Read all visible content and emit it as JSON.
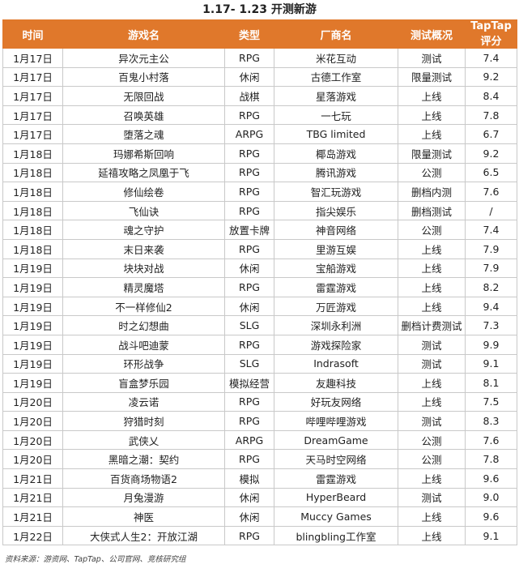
{
  "title": "1.17- 1.23 开测新游",
  "headers": [
    "时间",
    "游戏名",
    "类型",
    "厂商名",
    "测试概况",
    "TapTap评分"
  ],
  "rows": [
    [
      "1月17日",
      "异次元主公",
      "RPG",
      "米花互动",
      "测试",
      "7.4"
    ],
    [
      "1月17日",
      "百鬼小村落",
      "休闲",
      "古德工作室",
      "限量测试",
      "9.2"
    ],
    [
      "1月17日",
      "无限回战",
      "战棋",
      "星落游戏",
      "上线",
      "8.4"
    ],
    [
      "1月17日",
      "召唤英雄",
      "RPG",
      "一七玩",
      "上线",
      "7.8"
    ],
    [
      "1月17日",
      "堕落之魂",
      "ARPG",
      "TBG limited",
      "上线",
      "6.7"
    ],
    [
      "1月18日",
      "玛娜希斯回响",
      "RPG",
      "椰岛游戏",
      "限量测试",
      "9.2"
    ],
    [
      "1月18日",
      "延禧攻略之凤凰于飞",
      "RPG",
      "腾讯游戏",
      "公测",
      "6.5"
    ],
    [
      "1月18日",
      "修仙绘卷",
      "RPG",
      "智汇玩游戏",
      "删档内测",
      "7.6"
    ],
    [
      "1月18日",
      "飞仙诀",
      "RPG",
      "指尖娱乐",
      "删档测试",
      "/"
    ],
    [
      "1月18日",
      "魂之守护",
      "放置卡牌",
      "神音网络",
      "公测",
      "7.4"
    ],
    [
      "1月18日",
      "末日来袭",
      "RPG",
      "里游互娱",
      "上线",
      "7.9"
    ],
    [
      "1月19日",
      "块块对战",
      "休闲",
      "宝船游戏",
      "上线",
      "7.9"
    ],
    [
      "1月19日",
      "精灵魔塔",
      "RPG",
      "雷霆游戏",
      "上线",
      "8.2"
    ],
    [
      "1月19日",
      "不一样修仙2",
      "休闲",
      "万匠游戏",
      "上线",
      "9.4"
    ],
    [
      "1月19日",
      "时之幻想曲",
      "SLG",
      "深圳永利洲",
      "删档计费测试",
      "7.3"
    ],
    [
      "1月19日",
      "战斗吧迪蒙",
      "RPG",
      "游戏探险家",
      "测试",
      "9.9"
    ],
    [
      "1月19日",
      "环形战争",
      "SLG",
      "Indrasoft",
      "测试",
      "9.1"
    ],
    [
      "1月19日",
      "盲盒梦乐园",
      "模拟经营",
      "友趣科技",
      "上线",
      "8.1"
    ],
    [
      "1月20日",
      "凌云诺",
      "RPG",
      "好玩友网络",
      "上线",
      "7.5"
    ],
    [
      "1月20日",
      "狩猎时刻",
      "RPG",
      "哔哩哔哩游戏",
      "测试",
      "8.3"
    ],
    [
      "1月20日",
      "武侠乂",
      "ARPG",
      "DreamGame",
      "公测",
      "7.6"
    ],
    [
      "1月20日",
      "黑暗之潮：契约",
      "RPG",
      "天马时空网络",
      "公测",
      "7.8"
    ],
    [
      "1月21日",
      "百货商场物语2",
      "模拟",
      "雷霆游戏",
      "上线",
      "9.6"
    ],
    [
      "1月21日",
      "月兔漫游",
      "休闲",
      "HyperBeard",
      "测试",
      "9.0"
    ],
    [
      "1月21日",
      "神医",
      "休闲",
      "Muccy Games",
      "上线",
      "9.6"
    ],
    [
      "1月22日",
      "大侠式人生2：开放江湖",
      "RPG",
      "blingbling工作室",
      "上线",
      "9.1"
    ]
  ],
  "source": "资料来源：游资网、TapTap、公司官网、竞核研究组",
  "colors": {
    "header_bg": "#e0782b",
    "header_text": "#ffffff",
    "grid": "#c9c9c9"
  }
}
